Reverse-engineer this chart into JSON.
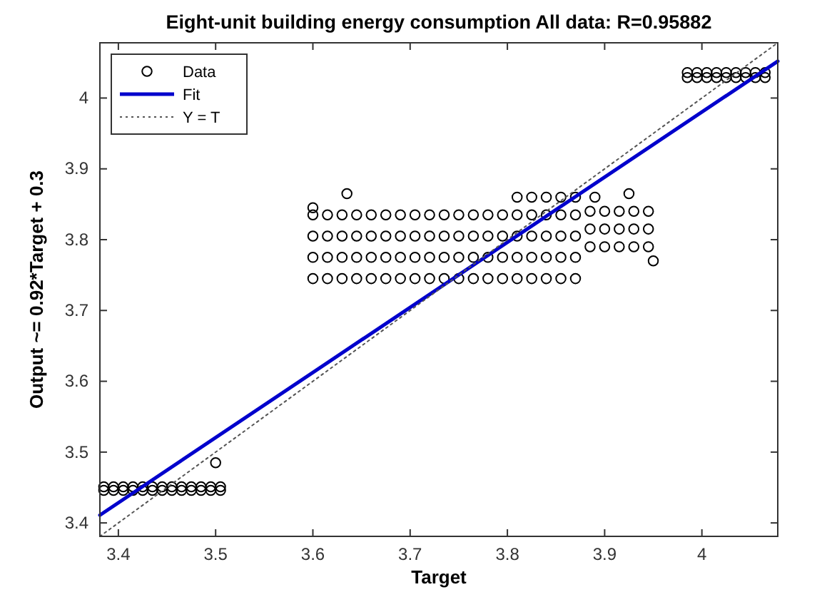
{
  "chart_data": {
    "type": "scatter",
    "title": "Eight-unit building energy consumption All data: R=0.95882",
    "xlabel": "Target",
    "ylabel": "Output ~= 0.92*Target + 0.3",
    "xlim": [
      3.381,
      4.078
    ],
    "ylim": [
      3.381,
      4.078
    ],
    "xticks": [
      3.4,
      3.5,
      3.6,
      3.7,
      3.8,
      3.9,
      4
    ],
    "yticks": [
      3.4,
      3.5,
      3.6,
      3.7,
      3.8,
      3.9,
      4
    ],
    "grid": false,
    "legend": "top left",
    "series": [
      {
        "name": "Data",
        "marker": "circle",
        "color": "#000000",
        "x": [
          3.385,
          3.395,
          3.405,
          3.415,
          3.425,
          3.435,
          3.445,
          3.455,
          3.465,
          3.475,
          3.485,
          3.495,
          3.505,
          3.385,
          3.395,
          3.405,
          3.415,
          3.425,
          3.435,
          3.445,
          3.455,
          3.465,
          3.475,
          3.485,
          3.495,
          3.505,
          3.5,
          3.6,
          3.615,
          3.63,
          3.645,
          3.66,
          3.675,
          3.69,
          3.705,
          3.72,
          3.735,
          3.75,
          3.765,
          3.78,
          3.795,
          3.81,
          3.825,
          3.84,
          3.855,
          3.87,
          3.6,
          3.615,
          3.63,
          3.645,
          3.66,
          3.675,
          3.69,
          3.705,
          3.72,
          3.735,
          3.75,
          3.765,
          3.78,
          3.795,
          3.81,
          3.825,
          3.84,
          3.855,
          3.87,
          3.6,
          3.615,
          3.63,
          3.645,
          3.66,
          3.675,
          3.69,
          3.705,
          3.72,
          3.735,
          3.75,
          3.765,
          3.78,
          3.795,
          3.81,
          3.825,
          3.84,
          3.855,
          3.87,
          3.6,
          3.615,
          3.63,
          3.645,
          3.66,
          3.675,
          3.69,
          3.705,
          3.72,
          3.735,
          3.75,
          3.765,
          3.78,
          3.795,
          3.81,
          3.825,
          3.84,
          3.855,
          3.87,
          3.81,
          3.825,
          3.84,
          3.855,
          3.87,
          3.885,
          3.9,
          3.915,
          3.93,
          3.945,
          3.885,
          3.9,
          3.915,
          3.93,
          3.945,
          3.885,
          3.9,
          3.915,
          3.93,
          3.945,
          3.635,
          3.925,
          3.89,
          3.95,
          3.6,
          3.985,
          3.995,
          4.005,
          4.015,
          4.025,
          4.035,
          4.045,
          4.055,
          4.065,
          3.985,
          3.995,
          4.005,
          4.015,
          4.025,
          4.035,
          4.045,
          4.055,
          4.065
        ],
        "values": [
          3.446,
          3.446,
          3.446,
          3.446,
          3.446,
          3.446,
          3.446,
          3.446,
          3.446,
          3.446,
          3.446,
          3.446,
          3.446,
          3.451,
          3.451,
          3.451,
          3.451,
          3.451,
          3.451,
          3.451,
          3.451,
          3.451,
          3.451,
          3.451,
          3.451,
          3.451,
          3.485,
          3.745,
          3.745,
          3.745,
          3.745,
          3.745,
          3.745,
          3.745,
          3.745,
          3.745,
          3.745,
          3.745,
          3.745,
          3.745,
          3.745,
          3.745,
          3.745,
          3.745,
          3.745,
          3.745,
          3.775,
          3.775,
          3.775,
          3.775,
          3.775,
          3.775,
          3.775,
          3.775,
          3.775,
          3.775,
          3.775,
          3.775,
          3.775,
          3.775,
          3.775,
          3.775,
          3.775,
          3.775,
          3.775,
          3.805,
          3.805,
          3.805,
          3.805,
          3.805,
          3.805,
          3.805,
          3.805,
          3.805,
          3.805,
          3.805,
          3.805,
          3.805,
          3.805,
          3.805,
          3.805,
          3.805,
          3.805,
          3.805,
          3.835,
          3.835,
          3.835,
          3.835,
          3.835,
          3.835,
          3.835,
          3.835,
          3.835,
          3.835,
          3.835,
          3.835,
          3.835,
          3.835,
          3.835,
          3.835,
          3.835,
          3.835,
          3.835,
          3.86,
          3.86,
          3.86,
          3.86,
          3.86,
          3.79,
          3.79,
          3.79,
          3.79,
          3.79,
          3.815,
          3.815,
          3.815,
          3.815,
          3.815,
          3.84,
          3.84,
          3.84,
          3.84,
          3.84,
          3.865,
          3.865,
          3.86,
          3.77,
          3.845,
          4.029,
          4.029,
          4.029,
          4.029,
          4.029,
          4.029,
          4.029,
          4.029,
          4.029,
          4.036,
          4.036,
          4.036,
          4.036,
          4.036,
          4.036,
          4.036,
          4.036,
          4.036
        ]
      },
      {
        "name": "Fit",
        "type": "line",
        "color": "#0000cc",
        "line_style": "solid",
        "marker": "none",
        "x": [
          3.381,
          4.078
        ],
        "values": [
          3.411,
          4.052
        ]
      },
      {
        "name": "Y = T",
        "type": "line",
        "color": "#555555",
        "line_style": "dotted",
        "marker": "none",
        "x": [
          3.381,
          4.078
        ],
        "values": [
          3.381,
          4.078
        ]
      }
    ]
  }
}
